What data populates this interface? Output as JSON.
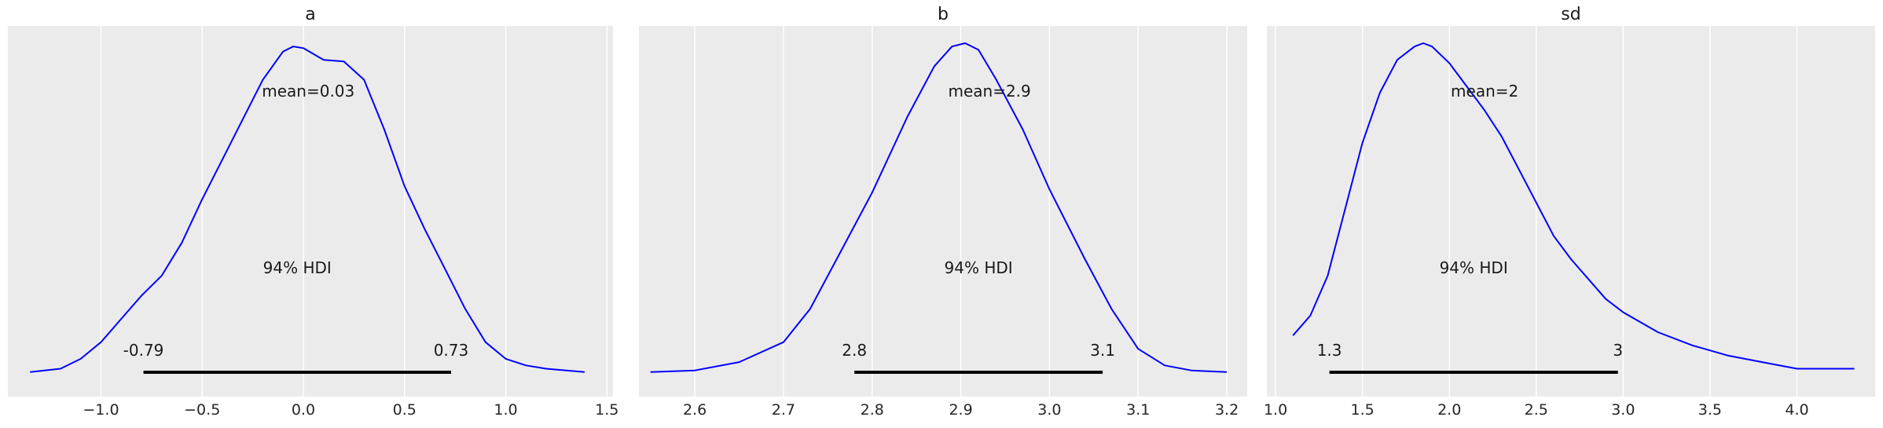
{
  "chart_data": [
    {
      "type": "line",
      "title": "a",
      "xlim": [
        -1.46,
        1.53
      ],
      "ticks": [
        -1.0,
        -0.5,
        0.0,
        0.5,
        1.0,
        1.5
      ],
      "tick_labels": [
        "−1.0",
        "−0.5",
        "0.0",
        "0.5",
        "1.0",
        "1.5"
      ],
      "grid": true,
      "series": [
        {
          "color": "#0000ff",
          "x": [
            -1.35,
            -1.2,
            -1.1,
            -1.0,
            -0.9,
            -0.8,
            -0.7,
            -0.6,
            -0.5,
            -0.4,
            -0.3,
            -0.2,
            -0.1,
            -0.05,
            0.0,
            0.1,
            0.2,
            0.3,
            0.4,
            0.5,
            0.6,
            0.7,
            0.8,
            0.9,
            1.0,
            1.1,
            1.2,
            1.3,
            1.39
          ],
          "y": [
            0.01,
            0.02,
            0.05,
            0.1,
            0.17,
            0.24,
            0.3,
            0.4,
            0.53,
            0.65,
            0.77,
            0.89,
            0.975,
            0.99,
            0.985,
            0.95,
            0.945,
            0.89,
            0.74,
            0.57,
            0.44,
            0.32,
            0.2,
            0.1,
            0.05,
            0.03,
            0.02,
            0.015,
            0.01
          ]
        }
      ],
      "annotations": {
        "mean_label": "mean=0.03",
        "hdi_label": "94% HDI",
        "hdi": [
          -0.79,
          0.73
        ],
        "hdi_low_label": "-0.79",
        "hdi_high_label": "0.73"
      }
    },
    {
      "type": "line",
      "title": "b",
      "xlim": [
        2.537,
        3.223
      ],
      "ticks": [
        2.6,
        2.7,
        2.8,
        2.9,
        3.0,
        3.1,
        3.2
      ],
      "tick_labels": [
        "2.6",
        "2.7",
        "2.8",
        "2.9",
        "3.0",
        "3.1",
        "3.2"
      ],
      "grid": true,
      "series": [
        {
          "color": "#0000ff",
          "x": [
            2.55,
            2.6,
            2.65,
            2.7,
            2.73,
            2.76,
            2.8,
            2.84,
            2.87,
            2.89,
            2.905,
            2.92,
            2.94,
            2.97,
            3.0,
            3.04,
            3.07,
            3.1,
            3.13,
            3.16,
            3.2
          ],
          "y": [
            0.01,
            0.015,
            0.04,
            0.1,
            0.2,
            0.35,
            0.55,
            0.78,
            0.93,
            0.99,
            1.0,
            0.98,
            0.89,
            0.74,
            0.56,
            0.35,
            0.2,
            0.08,
            0.03,
            0.015,
            0.01
          ]
        }
      ],
      "annotations": {
        "mean_label": "mean=2.9",
        "hdi_label": "94% HDI",
        "hdi": [
          2.78,
          3.06
        ],
        "hdi_low_label": "2.8",
        "hdi_high_label": "3.1"
      }
    },
    {
      "type": "line",
      "title": "sd",
      "xlim": [
        0.95,
        4.45
      ],
      "ticks": [
        1.0,
        1.5,
        2.0,
        2.5,
        3.0,
        3.5,
        4.0
      ],
      "tick_labels": [
        "1.0",
        "1.5",
        "2.0",
        "2.5",
        "3.0",
        "3.5",
        "4.0"
      ],
      "grid": true,
      "series": [
        {
          "color": "#0000ff",
          "x": [
            1.1,
            1.2,
            1.3,
            1.4,
            1.5,
            1.6,
            1.7,
            1.8,
            1.85,
            1.9,
            2.0,
            2.1,
            2.2,
            2.3,
            2.4,
            2.5,
            2.6,
            2.7,
            2.8,
            2.9,
            3.0,
            3.2,
            3.4,
            3.6,
            3.8,
            4.0,
            4.2,
            4.33
          ],
          "y": [
            0.12,
            0.18,
            0.3,
            0.5,
            0.7,
            0.85,
            0.95,
            0.99,
            1.0,
            0.99,
            0.94,
            0.87,
            0.8,
            0.72,
            0.62,
            0.52,
            0.42,
            0.35,
            0.29,
            0.23,
            0.19,
            0.13,
            0.09,
            0.06,
            0.04,
            0.02,
            0.02,
            0.02
          ]
        }
      ],
      "annotations": {
        "mean_label": "mean=2",
        "hdi_label": "94% HDI",
        "hdi": [
          1.31,
          2.97
        ],
        "hdi_low_label": "1.3",
        "hdi_high_label": "3"
      }
    }
  ],
  "colors": {
    "panel_background": "#ebebeb",
    "grid": "#ffffff",
    "line": "#0000ff",
    "hdi_bar": "#000000"
  }
}
